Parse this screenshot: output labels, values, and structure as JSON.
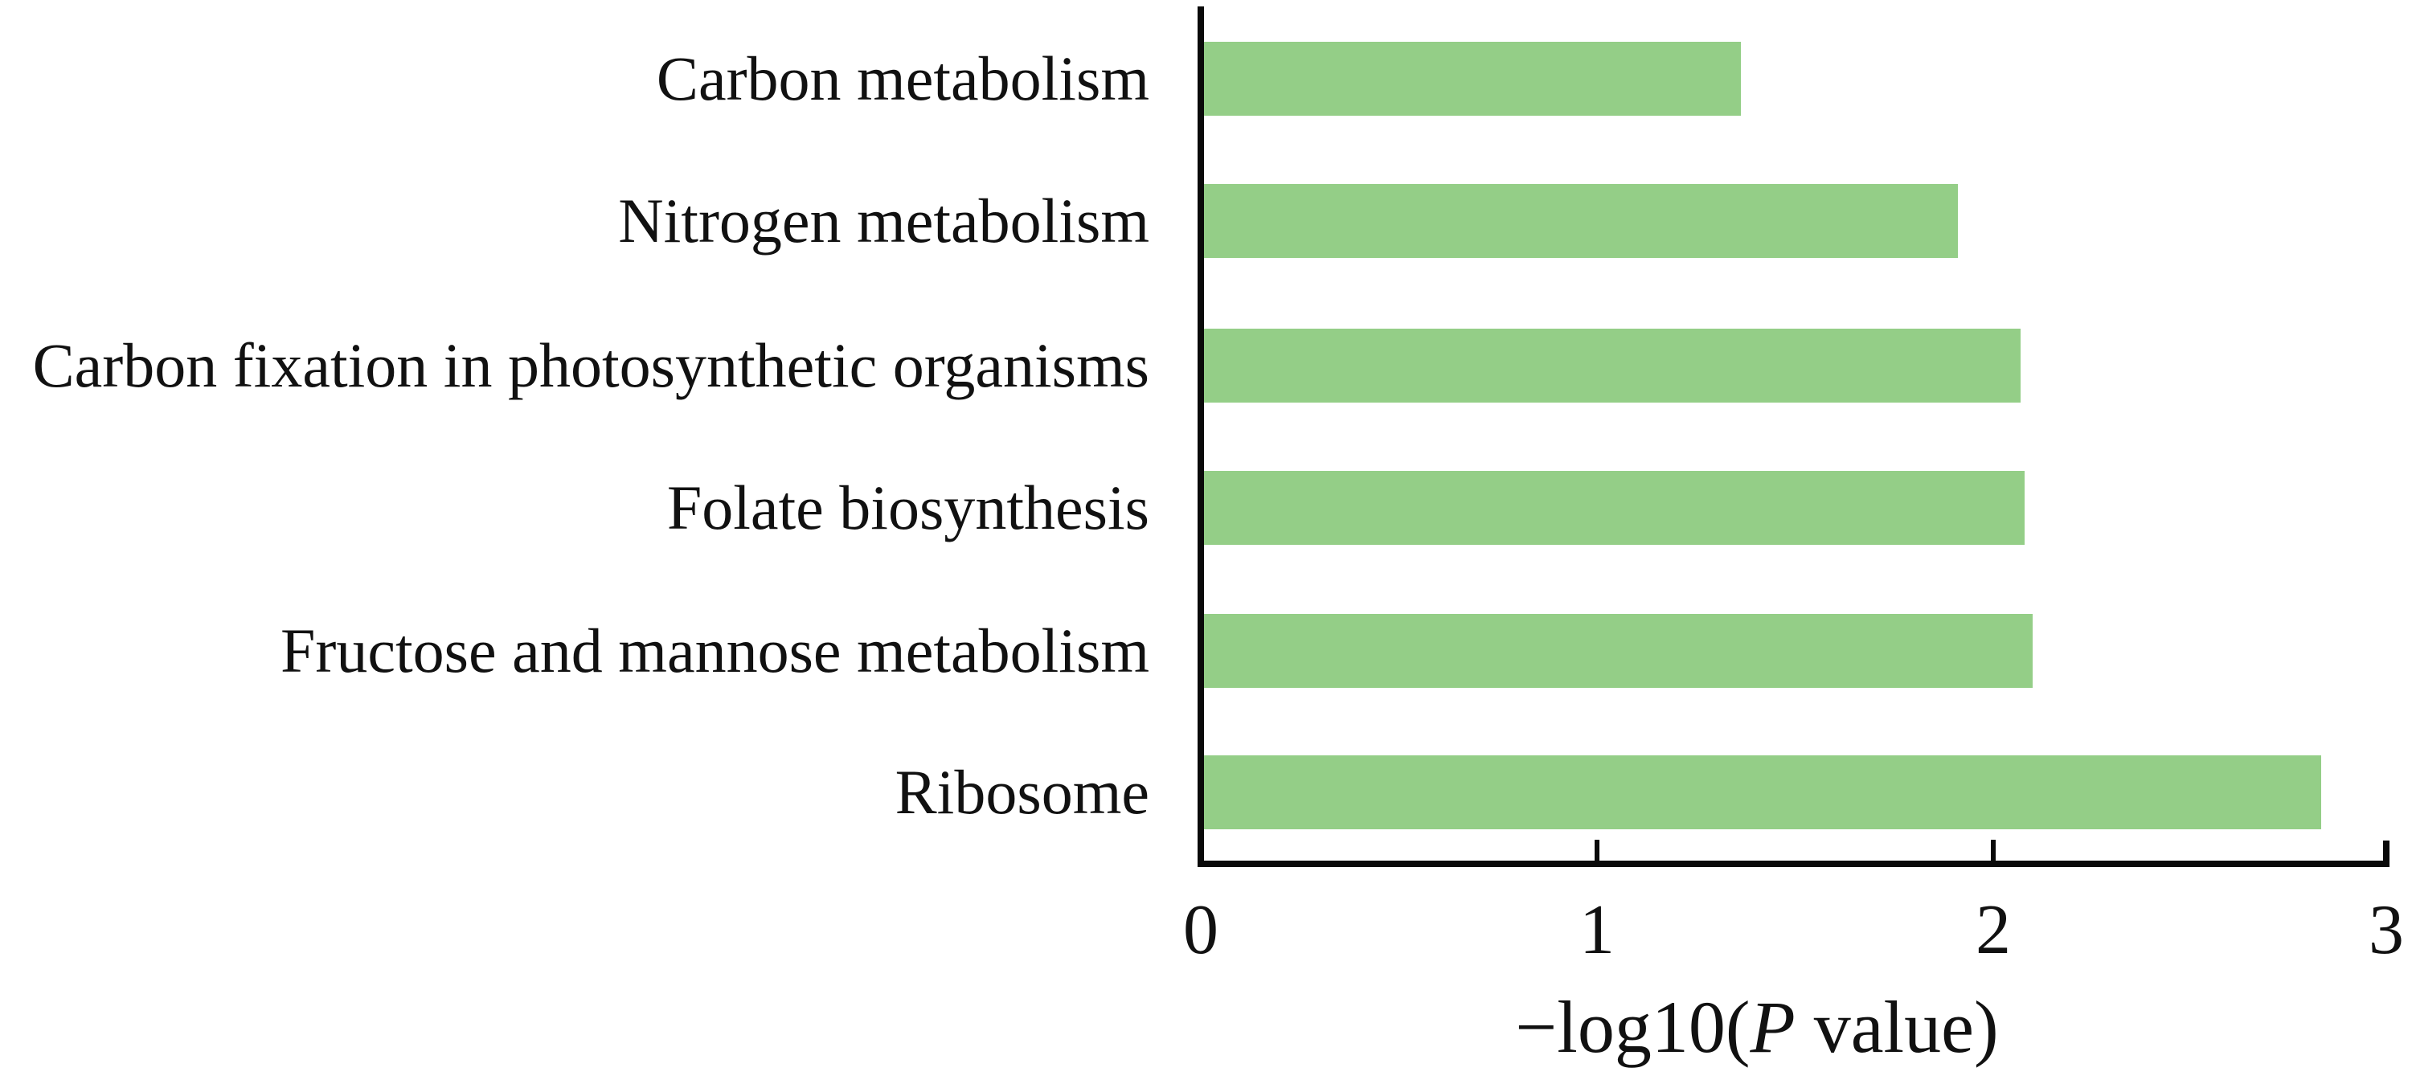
{
  "chart_data": {
    "type": "bar",
    "orientation": "horizontal",
    "categories": [
      "Carbon metabolism",
      "Nitrogen metabolism",
      "Carbon fixation in photosynthetic organisms",
      "Folate biosynthesis",
      "Fructose and mannose metabolism",
      "Ribosome"
    ],
    "values": [
      1.36,
      1.91,
      2.07,
      2.08,
      2.1,
      2.83
    ],
    "xlabel": "−log10(P value)",
    "xlabel_parts": {
      "prefix": "−log10(",
      "italic_var": "P",
      "suffix": " value)"
    },
    "x_tick_labels": [
      "0",
      "1",
      "2",
      "3"
    ],
    "xlim": [
      0,
      3
    ],
    "grid": false,
    "legend_position": "none",
    "bar_color": "#94CE87",
    "axis_color": "#0a0a0a"
  }
}
